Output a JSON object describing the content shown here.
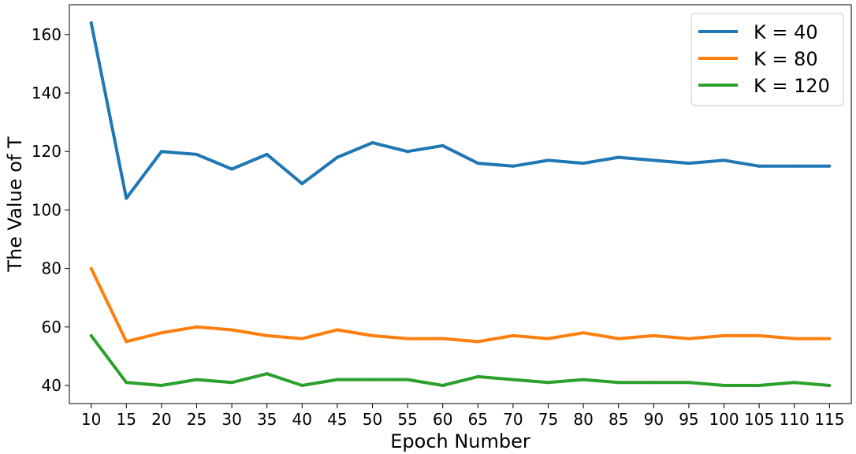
{
  "chart_data": {
    "type": "line",
    "title": "",
    "xlabel": "Epoch Number",
    "ylabel": "The Value of T",
    "x": [
      10,
      15,
      20,
      25,
      30,
      35,
      40,
      45,
      50,
      55,
      60,
      65,
      70,
      75,
      80,
      85,
      90,
      95,
      100,
      105,
      110,
      115
    ],
    "xticks": [
      10,
      15,
      20,
      25,
      30,
      35,
      40,
      45,
      50,
      55,
      60,
      65,
      70,
      75,
      80,
      85,
      90,
      95,
      100,
      105,
      110,
      115
    ],
    "yticks": [
      40,
      60,
      80,
      100,
      120,
      140,
      160
    ],
    "xlim": [
      6.9,
      118.1
    ],
    "ylim": [
      33.8,
      170.2
    ],
    "grid": false,
    "legend_position": "top-right",
    "series": [
      {
        "name": "K = 40",
        "color": "#1f77b4",
        "values": [
          164,
          104,
          120,
          119,
          114,
          119,
          109,
          118,
          123,
          120,
          122,
          116,
          115,
          117,
          116,
          118,
          117,
          116,
          117,
          115,
          115,
          115
        ]
      },
      {
        "name": "K = 80",
        "color": "#ff7f0e",
        "values": [
          80,
          55,
          58,
          60,
          59,
          57,
          56,
          59,
          57,
          56,
          56,
          55,
          57,
          56,
          58,
          56,
          57,
          56,
          57,
          57,
          56,
          56
        ]
      },
      {
        "name": "K = 120",
        "color": "#2ca02c",
        "values": [
          57,
          41,
          40,
          42,
          41,
          44,
          40,
          42,
          42,
          42,
          40,
          43,
          42,
          41,
          42,
          41,
          41,
          41,
          40,
          40,
          41,
          40
        ]
      }
    ]
  }
}
